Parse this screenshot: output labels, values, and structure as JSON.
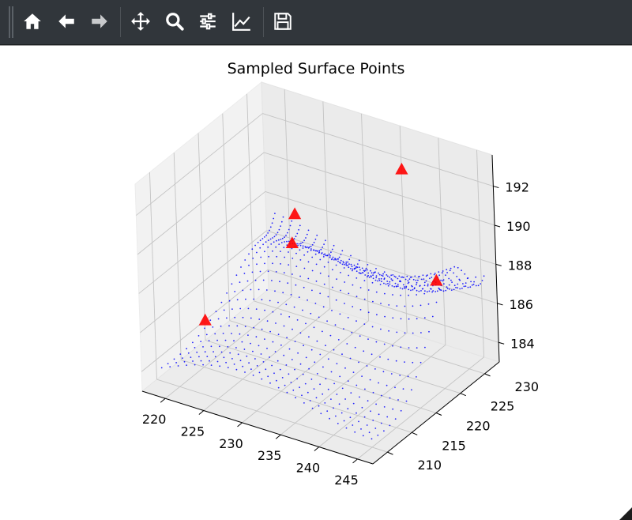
{
  "toolbar": {
    "buttons": [
      {
        "name": "home-button",
        "icon": "home-icon"
      },
      {
        "name": "back-button",
        "icon": "arrow-left-icon"
      },
      {
        "name": "forward-button",
        "icon": "arrow-right-icon"
      },
      {
        "name": "pan-button",
        "icon": "move-icon"
      },
      {
        "name": "zoom-button",
        "icon": "magnifier-icon"
      },
      {
        "name": "configure-subplots-button",
        "icon": "sliders-icon"
      },
      {
        "name": "edit-axis-button",
        "icon": "line-chart-icon"
      },
      {
        "name": "save-button",
        "icon": "floppy-disk-icon"
      }
    ],
    "colors": {
      "background": "#31363b",
      "icon": "#ffffff"
    }
  },
  "chart_data": {
    "type": "scatter",
    "projection": "3d",
    "title": "Sampled Surface Points",
    "xlabel": "",
    "ylabel": "",
    "zlabel": "",
    "xlim": [
      217,
      247
    ],
    "ylim": [
      207,
      233
    ],
    "zlim": [
      183,
      193.6
    ],
    "xticks": [
      220,
      225,
      230,
      235,
      240,
      245
    ],
    "yticks": [
      210,
      215,
      220,
      225,
      230
    ],
    "zticks": [
      184,
      186,
      188,
      190,
      192
    ],
    "grid": true,
    "pane_color": "#f2f2f2",
    "series": [
      {
        "kind": "surface-points",
        "marker": "dot",
        "color": "#0000ff",
        "description_rows": 26,
        "description_cols": 30,
        "x_range": [
          219,
          245
        ],
        "y_range": [
          209,
          232
        ],
        "z_range": [
          184,
          193
        ]
      },
      {
        "kind": "sample-points",
        "marker": "triangle",
        "color": "#ff0000",
        "points": [
          {
            "x": 221,
            "y": 214,
            "z": 185.7
          },
          {
            "x": 229.5,
            "y": 219,
            "z": 189.7
          },
          {
            "x": 228,
            "y": 222,
            "z": 190.4
          },
          {
            "x": 237,
            "y": 230,
            "z": 192.2
          },
          {
            "x": 245,
            "y": 224,
            "z": 188.7
          }
        ]
      }
    ]
  }
}
